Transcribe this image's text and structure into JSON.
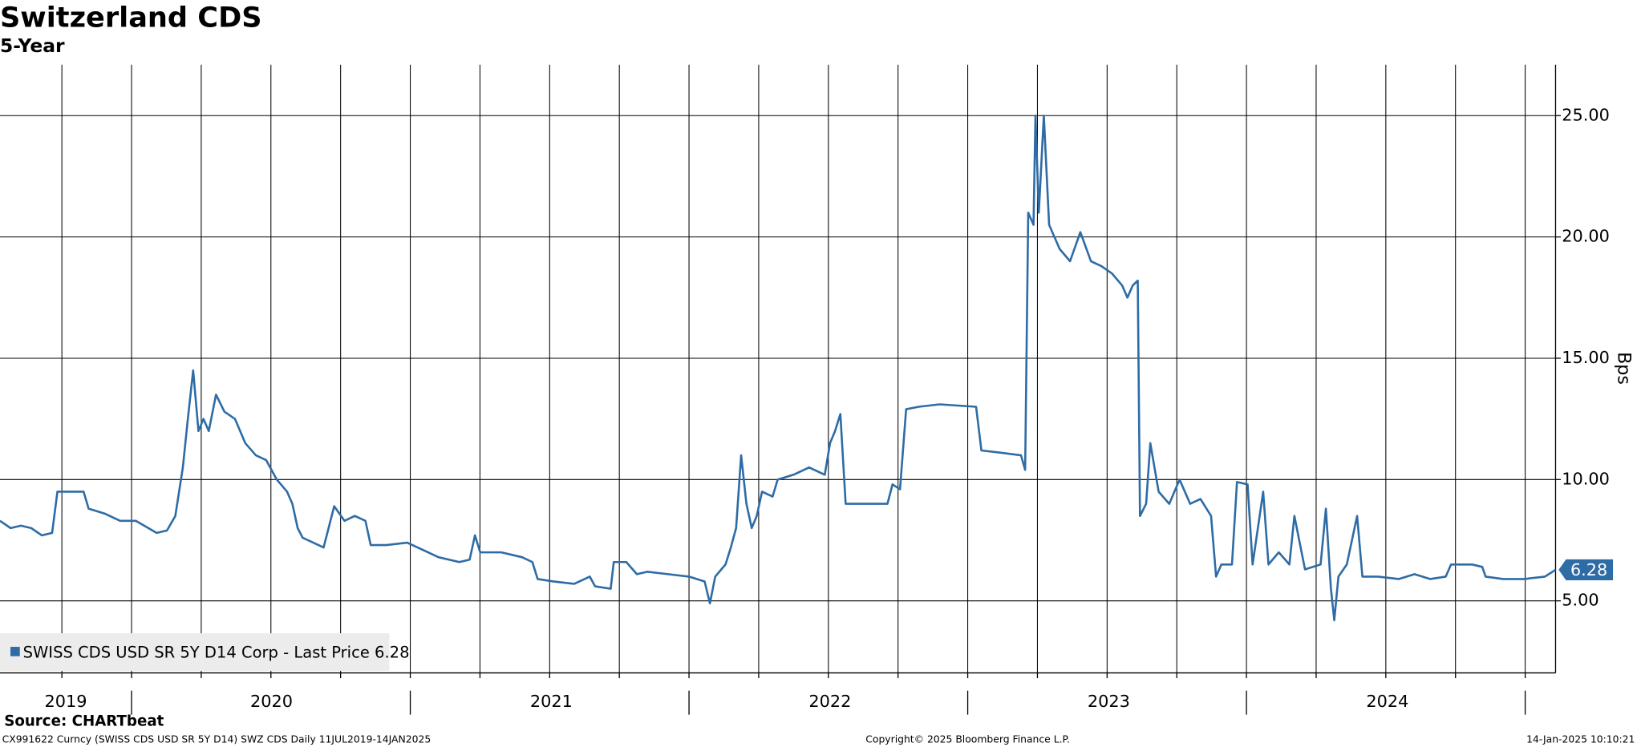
{
  "chart_data": {
    "type": "line",
    "title": "Switzerland CDS",
    "subtitle": "5-Year",
    "y_label": "Bps",
    "source": "Source: CHARTbeat",
    "footer_left": "CX991622 Curncy (SWISS CDS USD SR 5Y D14) SWZ CDS  Daily 11JUL2019-14JAN2025",
    "footer_center": "Copyright© 2025 Bloomberg Finance L.P.",
    "footer_right": "14-Jan-2025 10:10:21",
    "xlim": [
      2019.528,
      2025.109
    ],
    "xticks": [
      {
        "value": 2019.764,
        "label": "2019"
      },
      {
        "value": 2020.502,
        "label": "2020"
      },
      {
        "value": 2021.506,
        "label": "2021"
      },
      {
        "value": 2022.506,
        "label": "2022"
      },
      {
        "value": 2023.506,
        "label": "2023"
      },
      {
        "value": 2024.506,
        "label": "2024"
      }
    ],
    "x_separators": [
      2020,
      2021,
      2022,
      2023,
      2024,
      2025
    ],
    "xgrid": [
      2019.75,
      2020,
      2020.25,
      2020.5,
      2020.75,
      2021,
      2021.25,
      2021.5,
      2021.75,
      2022,
      2022.25,
      2022.5,
      2022.75,
      2023,
      2023.25,
      2023.5,
      2023.75,
      2024,
      2024.25,
      2024.5,
      2024.75,
      2025
    ],
    "ylim": [
      2.03,
      27.1
    ],
    "yticks": [
      {
        "value": 5,
        "label": "5.00"
      },
      {
        "value": 10,
        "label": "10.00"
      },
      {
        "value": 15,
        "label": "15.00"
      },
      {
        "value": 20,
        "label": "20.00"
      },
      {
        "value": 25,
        "label": "25.00"
      }
    ],
    "grid": true,
    "legend": "bottom-left",
    "x": [
      2019.528,
      2019.566,
      2019.603,
      2019.64,
      2019.678,
      2019.715,
      2019.734,
      2019.828,
      2019.846,
      2019.903,
      2019.959,
      2020.015,
      2020.09,
      2020.127,
      2020.157,
      2020.184,
      2020.202,
      2020.221,
      2020.24,
      2020.258,
      2020.277,
      2020.303,
      2020.333,
      2020.371,
      2020.408,
      2020.446,
      2020.483,
      2020.521,
      2020.558,
      2020.577,
      2020.596,
      2020.614,
      2020.652,
      2020.689,
      2020.727,
      2020.764,
      2020.801,
      2020.839,
      2020.858,
      2020.914,
      2020.989,
      2021.045,
      2021.101,
      2021.176,
      2021.213,
      2021.232,
      2021.251,
      2021.326,
      2021.401,
      2021.438,
      2021.457,
      2021.513,
      2021.588,
      2021.644,
      2021.663,
      2021.719,
      2021.73,
      2021.775,
      2021.813,
      2021.85,
      2021.925,
      2022.0,
      2022.056,
      2022.075,
      2022.094,
      2022.131,
      2022.15,
      2022.169,
      2022.187,
      2022.206,
      2022.225,
      2022.243,
      2022.262,
      2022.3,
      2022.318,
      2022.375,
      2022.431,
      2022.487,
      2022.506,
      2022.524,
      2022.543,
      2022.562,
      2022.637,
      2022.712,
      2022.73,
      2022.757,
      2022.779,
      2022.824,
      2022.899,
      2023.03,
      2023.049,
      2023.124,
      2023.191,
      2023.206,
      2023.217,
      2023.236,
      2023.243,
      2023.255,
      2023.273,
      2023.292,
      2023.311,
      2023.33,
      2023.367,
      2023.404,
      2023.442,
      2023.479,
      2023.517,
      2023.554,
      2023.573,
      2023.592,
      2023.61,
      2023.618,
      2023.64,
      2023.655,
      2023.685,
      2023.723,
      2023.76,
      2023.798,
      2023.835,
      2023.873,
      2023.891,
      2023.91,
      2023.948,
      2023.966,
      2024.004,
      2024.022,
      2024.041,
      2024.06,
      2024.079,
      2024.116,
      2024.154,
      2024.172,
      2024.21,
      2024.266,
      2024.285,
      2024.303,
      2024.315,
      2024.33,
      2024.36,
      2024.397,
      2024.416,
      2024.472,
      2024.547,
      2024.603,
      2024.659,
      2024.715,
      2024.734,
      2024.809,
      2024.846,
      2024.858,
      2024.921,
      2024.996,
      2025.071,
      2025.109
    ],
    "series": [
      {
        "name": "SWISS CDS USD SR 5Y D14 Corp - Last Price 6.28",
        "color": "#2e6ca6",
        "values": [
          8.3,
          8.0,
          8.1,
          8.0,
          7.7,
          7.8,
          9.5,
          9.5,
          8.8,
          8.6,
          8.3,
          8.3,
          7.8,
          7.9,
          8.5,
          10.5,
          12.5,
          14.5,
          12.0,
          12.5,
          12.0,
          13.5,
          12.8,
          12.5,
          11.5,
          11.0,
          10.8,
          10.0,
          9.5,
          9.0,
          8.0,
          7.6,
          7.4,
          7.2,
          8.9,
          8.3,
          8.5,
          8.3,
          7.3,
          7.3,
          7.4,
          7.1,
          6.8,
          6.6,
          6.7,
          7.7,
          7.0,
          7.0,
          6.8,
          6.6,
          5.9,
          5.8,
          5.7,
          6.0,
          5.6,
          5.5,
          6.6,
          6.6,
          6.1,
          6.2,
          6.1,
          6.0,
          5.8,
          4.9,
          6.0,
          6.5,
          7.2,
          8.0,
          11.0,
          9.0,
          8.0,
          8.5,
          9.5,
          9.3,
          10.0,
          10.2,
          10.5,
          10.2,
          11.5,
          12.0,
          12.7,
          9.0,
          9.0,
          9.0,
          9.8,
          9.6,
          12.9,
          13.0,
          13.1,
          13.0,
          11.2,
          11.1,
          11.0,
          10.4,
          21.0,
          20.5,
          25.0,
          21.0,
          25.0,
          20.5,
          20.0,
          19.5,
          19.0,
          20.2,
          19.0,
          18.8,
          18.5,
          18.0,
          17.5,
          18.0,
          18.2,
          8.5,
          9.0,
          11.5,
          9.5,
          9.0,
          10.0,
          9.0,
          9.2,
          8.5,
          6.0,
          6.5,
          6.5,
          9.9,
          9.8,
          6.5,
          8.0,
          9.5,
          6.5,
          7.0,
          6.5,
          8.5,
          6.3,
          6.5,
          8.8,
          5.5,
          4.2,
          6.0,
          6.5,
          8.5,
          6.0,
          6.0,
          5.9,
          6.1,
          5.9,
          6.0,
          6.5,
          6.5,
          6.4,
          6.0,
          5.9,
          5.9,
          6.0,
          6.28
        ]
      }
    ]
  }
}
